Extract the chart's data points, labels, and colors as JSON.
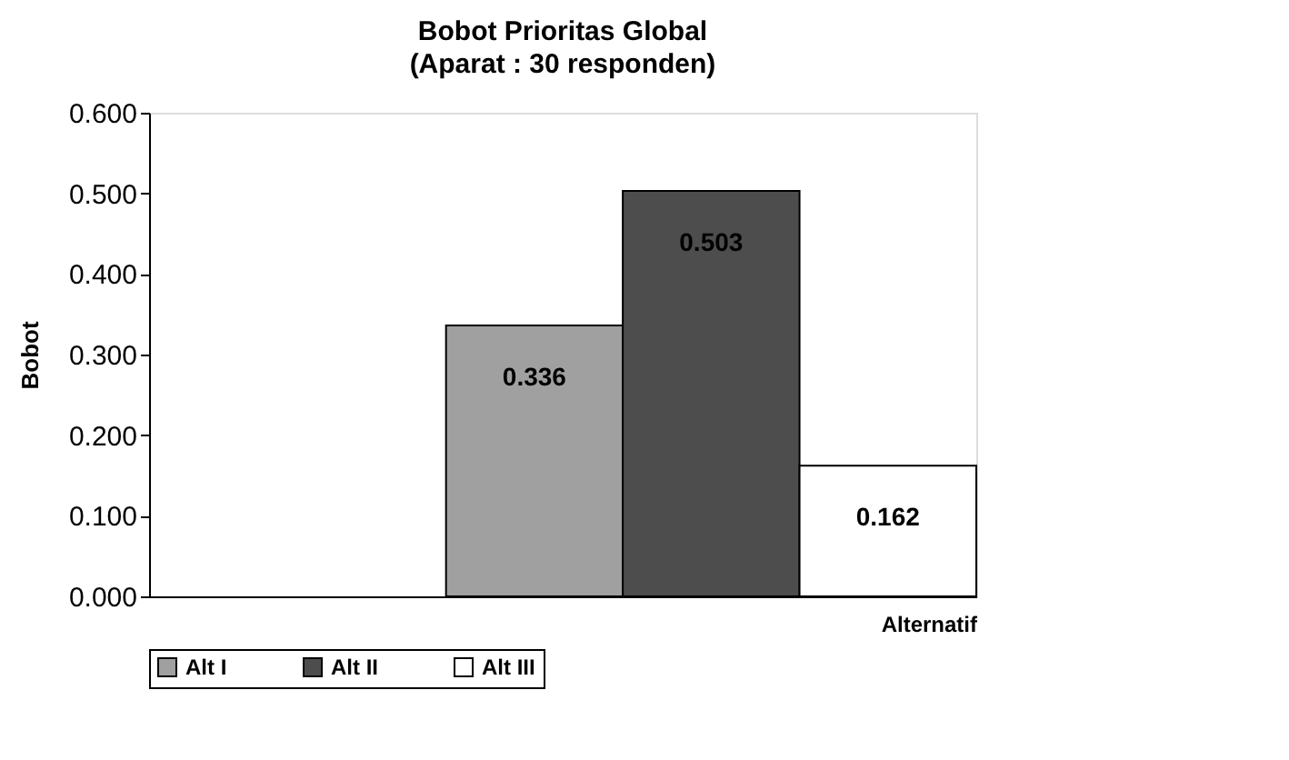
{
  "chart_data": {
    "type": "bar",
    "title": "Bobot Prioritas Global",
    "subtitle": "(Aparat : 30 responden)",
    "xlabel": "Alternatif",
    "ylabel": "Bobot",
    "categories": [
      null
    ],
    "series": [
      {
        "name": "Alt I",
        "color": "#a0a0a0",
        "values": [
          0.336
        ]
      },
      {
        "name": "Alt II",
        "color": "#4d4d4d",
        "values": [
          0.503
        ]
      },
      {
        "name": "Alt III",
        "color": "#ffffff",
        "values": [
          0.162
        ]
      }
    ],
    "ylim": [
      0,
      0.6
    ],
    "yticks": [
      {
        "value": 0,
        "label": "0.000"
      },
      {
        "value": 0.1,
        "label": "0.100"
      },
      {
        "value": 0.2,
        "label": "0.200"
      },
      {
        "value": 0.3,
        "label": "0.300"
      },
      {
        "value": 0.4,
        "label": "0.400"
      },
      {
        "value": 0.5,
        "label": "0.500"
      },
      {
        "value": 0.6,
        "label": "0.600"
      }
    ],
    "data_labels": true,
    "grid": false,
    "legend": "bottom"
  }
}
